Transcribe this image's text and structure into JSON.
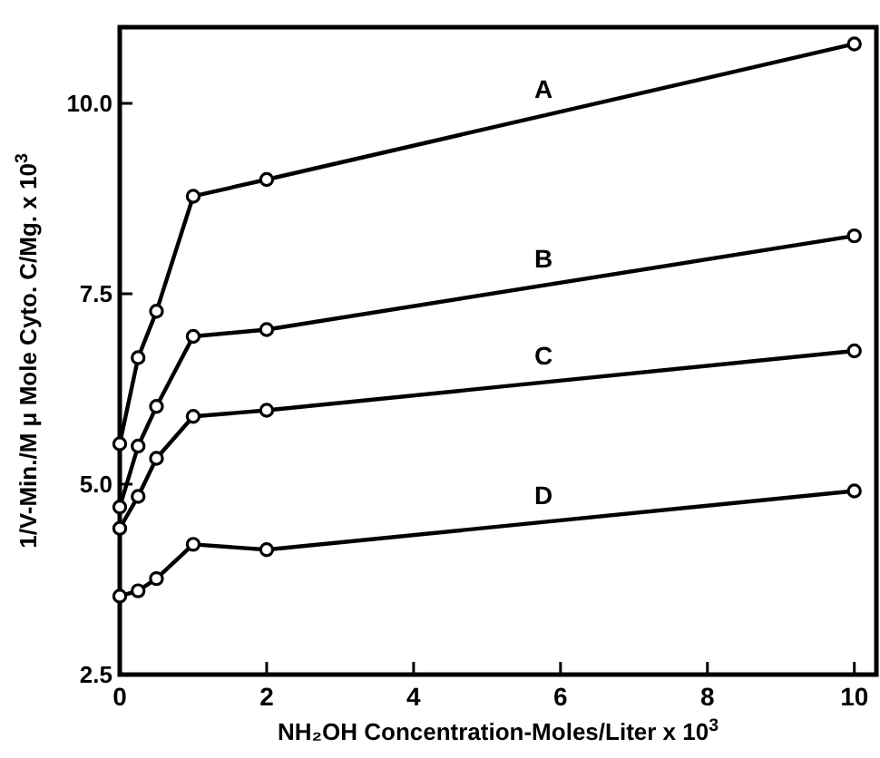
{
  "chart_data": {
    "type": "line",
    "xlabel": "NH₂OH Concentration-Moles/Liter x 10$^{3}$",
    "ylabel": "1/V-Min./M μ Mole Cyto. C/Mg. x 10$^{3}$",
    "x": [
      0,
      0.25,
      0.5,
      1,
      2,
      10
    ],
    "series": [
      {
        "name": "A",
        "color": "#000000",
        "values": [
          5.53,
          6.66,
          7.27,
          8.78,
          9.0,
          10.78
        ]
      },
      {
        "name": "B",
        "color": "#000000",
        "values": [
          4.7,
          5.5,
          6.02,
          6.94,
          7.03,
          8.26
        ]
      },
      {
        "name": "C",
        "color": "#000000",
        "values": [
          4.42,
          4.84,
          5.34,
          5.89,
          5.97,
          6.75
        ]
      },
      {
        "name": "D",
        "color": "#000000",
        "values": [
          3.53,
          3.6,
          3.76,
          4.21,
          4.14,
          4.91
        ]
      }
    ],
    "xlim": [
      0,
      10.3
    ],
    "ylim": [
      2.5,
      11
    ],
    "xticks": [
      0,
      2,
      4,
      6,
      8,
      10
    ],
    "yticks": [
      {
        "value": 2.5,
        "label": "2.5"
      },
      {
        "value": 5,
        "label": "5.0"
      },
      7.5,
      {
        "value": 10,
        "label": "10.0"
      }
    ],
    "grid": false,
    "marker": "circle",
    "line_style": "solid"
  }
}
